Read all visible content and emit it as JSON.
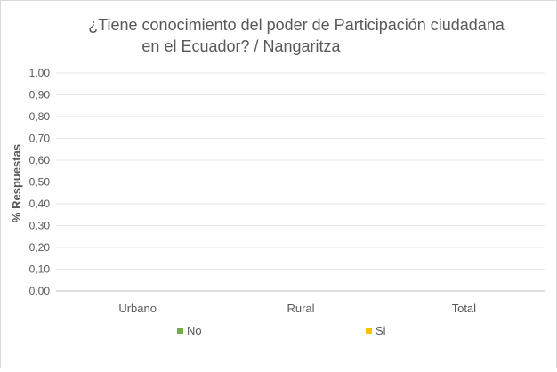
{
  "chart_data": {
    "type": "bar",
    "title_lines": [
      "¿Tiene conocimiento del poder de Participación ciudadana",
      "en el Ecuador?  / Nangaritza"
    ],
    "xlabel": "",
    "ylabel": "% Respuestas",
    "categories": [
      "Urbano",
      "Rural",
      "Total"
    ],
    "ylim": [
      0,
      1
    ],
    "yticks": [
      "0,00",
      "0,10",
      "0,20",
      "0,30",
      "0,40",
      "0,50",
      "0,60",
      "0,70",
      "0,80",
      "0,90",
      "1,00"
    ],
    "grid": true,
    "legend_position": "bottom",
    "series": [
      {
        "name": "No",
        "color": "#70ad47",
        "values": [
          0,
          0,
          0
        ]
      },
      {
        "name": "Si",
        "color": "#ffc000",
        "values": [
          0,
          0,
          0
        ]
      }
    ]
  }
}
